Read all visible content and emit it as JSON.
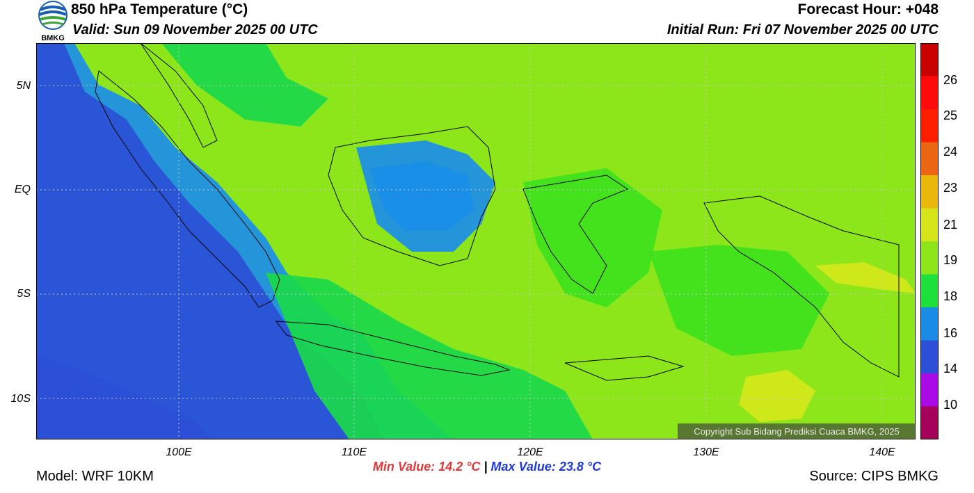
{
  "header": {
    "title": "850 hPa Temperature (°C)",
    "valid": "Valid: Sun 09 November 2025 00 UTC",
    "forecast_hour": "Forecast Hour: +048",
    "initial_run": "Initial Run: Fri 07 November 2025 00 UTC",
    "logo_text": "BMKG"
  },
  "map": {
    "lat_labels": [
      "5N",
      "EQ",
      "5S",
      "10S"
    ],
    "lon_labels": [
      "100E",
      "110E",
      "120E",
      "130E",
      "140E"
    ],
    "copyright": "Copyright Sub Bidang Prediksi Cuaca BMKG, 2025",
    "colors": {
      "c_lt14": "#2b4fd6",
      "c_14_16": "#1a8ee8",
      "c_16_18": "#1ad94a",
      "c_18_19": "#3ee21c",
      "c_19_21": "#8ce61a",
      "c_21_23": "#d4e81a"
    }
  },
  "colorbar": {
    "labels": [
      "26",
      "25",
      "24",
      "23",
      "21",
      "19",
      "18",
      "16",
      "14",
      "10"
    ],
    "colors": [
      "#c80000",
      "#ff0a0a",
      "#ff1f00",
      "#ea6612",
      "#eab80a",
      "#d6e41a",
      "#8ee61a",
      "#1ee03c",
      "#1a8ce6",
      "#2b4fd6",
      "#aa0ae6",
      "#a5005a"
    ]
  },
  "footer": {
    "min_value": "Min Value: 14.2 °C",
    "separator": "|",
    "max_value": "Max Value: 23.8 °C",
    "model": "Model: WRF 10KM",
    "source": "Source: CIPS BMKG"
  }
}
